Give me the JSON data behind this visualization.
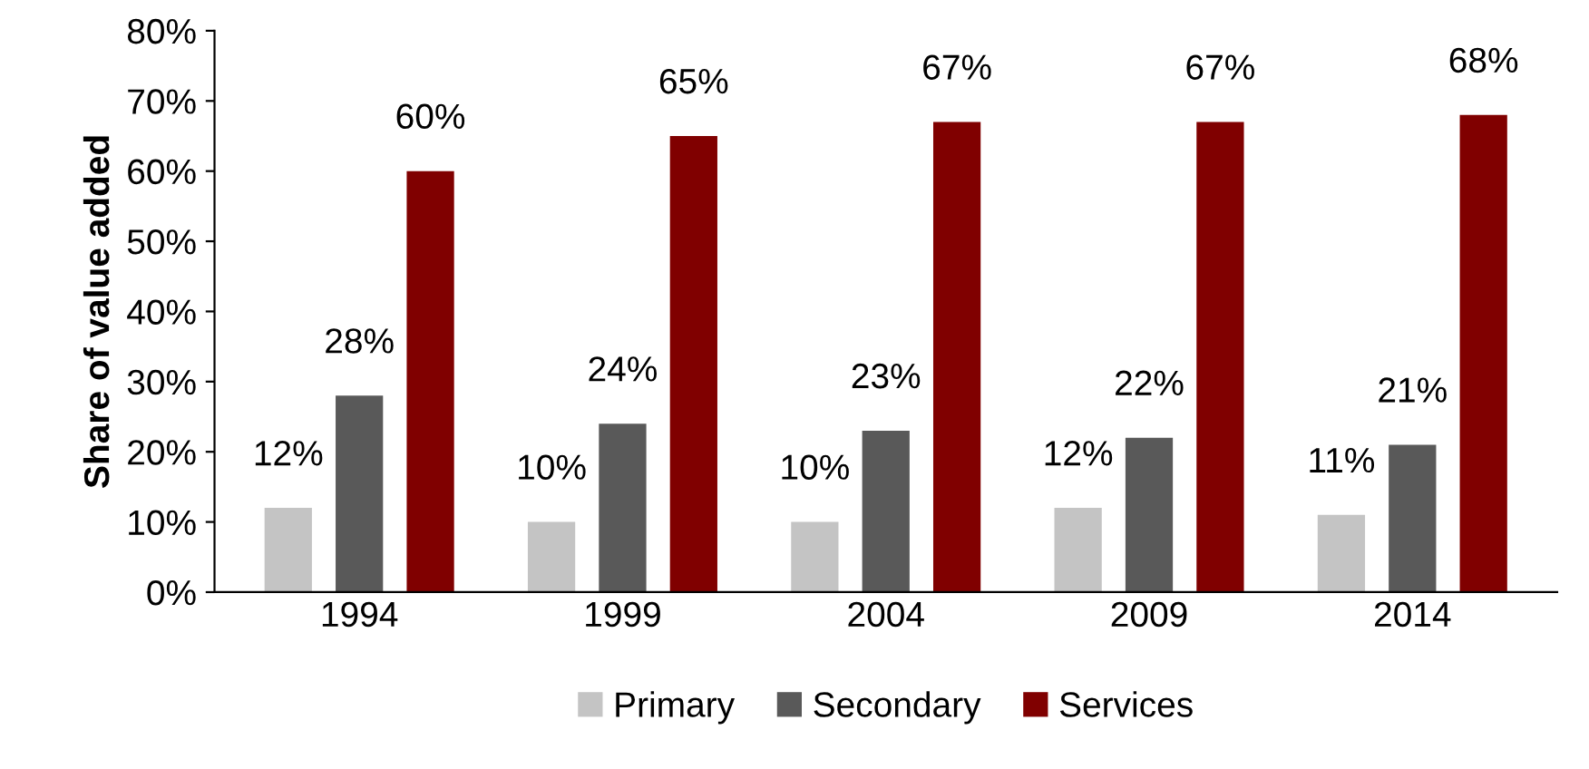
{
  "chart_data": {
    "type": "bar",
    "ylabel": "Share of value added",
    "categories": [
      "1994",
      "1999",
      "2004",
      "2009",
      "2014"
    ],
    "series": [
      {
        "name": "Primary",
        "color": "#c4c4c4",
        "values": [
          12,
          10,
          10,
          12,
          11
        ]
      },
      {
        "name": "Secondary",
        "color": "#595959",
        "values": [
          28,
          24,
          23,
          22,
          21
        ]
      },
      {
        "name": "Services",
        "color": "#800000",
        "values": [
          60,
          65,
          67,
          67,
          68
        ]
      }
    ],
    "ylim": [
      0,
      80
    ],
    "yticks": [
      {
        "value": 0,
        "label": "0%"
      },
      {
        "value": 10,
        "label": "10%"
      },
      {
        "value": 20,
        "label": "20%"
      },
      {
        "value": 30,
        "label": "30%"
      },
      {
        "value": 40,
        "label": "40%"
      },
      {
        "value": 50,
        "label": "50%"
      },
      {
        "value": 60,
        "label": "60%"
      },
      {
        "value": 70,
        "label": "70%"
      },
      {
        "value": 80,
        "label": "80%"
      }
    ],
    "value_labels": [
      [
        "12%",
        "10%",
        "10%",
        "12%",
        "11%"
      ],
      [
        "28%",
        "24%",
        "23%",
        "22%",
        "21%"
      ],
      [
        "60%",
        "65%",
        "67%",
        "67%",
        "68%"
      ]
    ],
    "legend": "bottom",
    "grid": false
  }
}
